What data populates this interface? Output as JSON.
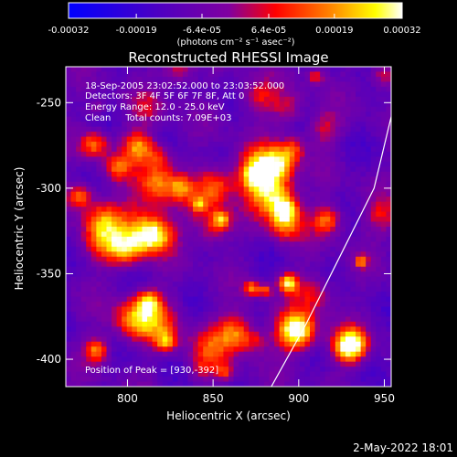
{
  "chart_data": {
    "type": "heatmap",
    "title": "Reconstructed RHESSI Image",
    "xlabel": "Heliocentric X (arcsec)",
    "ylabel": "Heliocentric Y (arcsec)",
    "xlim": [
      764,
      954
    ],
    "ylim": [
      -416,
      -229
    ],
    "xticks": [
      800,
      850,
      900,
      950
    ],
    "yticks": [
      -250,
      -300,
      -350,
      -400
    ],
    "colorbar": {
      "ticks": [
        -0.00032,
        -0.00019,
        -6.4e-05,
        6.4e-05,
        0.00019,
        0.00032
      ],
      "tick_labels": [
        "-0.00032",
        "-0.00019",
        "-6.4e-05",
        "6.4e-05",
        "0.00019",
        "0.00032"
      ],
      "unit_label": "(photons cm⁻² s⁻¹ asec⁻²)",
      "colors": [
        "#0000ff",
        "#5000c0",
        "#8000a0",
        "#ff0000",
        "#ff8000",
        "#ffff00",
        "#ffffff"
      ]
    },
    "annotations": [
      "18-Sep-2005 23:02:52.000 to 23:03:52.000",
      "Detectors: 3F 4F 5F 6F 7F 8F, Att 0",
      "Energy Range: 12.0 - 25.0 keV",
      "Clean     Total counts: 7.09E+03",
      "Position of Peak = [930,-392]"
    ],
    "peak": {
      "x": 930,
      "y": -392
    },
    "limb_arc": [
      [
        961,
        -229
      ],
      [
        944,
        -300
      ],
      [
        904,
        -380
      ],
      [
        884,
        -416
      ]
    ]
  },
  "footer": {
    "timestamp": "2-May-2022 18:01"
  }
}
